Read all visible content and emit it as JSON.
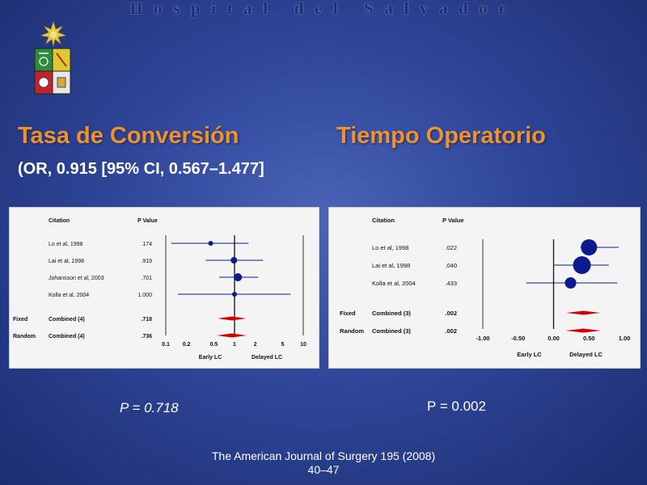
{
  "header": {
    "text": "Hospital del Salvador"
  },
  "left": {
    "title": "Tasa de Conversión",
    "subtitle": "(OR, 0.915 [95% CI, 0.567–1.477]",
    "p_label": "P  = 0.718"
  },
  "right": {
    "title": "Tiempo Operatorio",
    "p_label": "P  = 0.002"
  },
  "footer": {
    "line1": "The American Journal of Surgery 195 (2008)",
    "line2": "40–47"
  },
  "colors": {
    "point": "#0b1a8c",
    "diamond": "#d40000",
    "title": "#f0922a"
  },
  "chart_data": [
    {
      "type": "forest",
      "scale": "log",
      "column_headers": [
        "Citation",
        "P Value"
      ],
      "rows": [
        {
          "label": "Lo et al, 1998",
          "p": ".174",
          "est": 0.45,
          "lo": 0.12,
          "hi": 1.6,
          "kind": "study",
          "size": 3
        },
        {
          "label": "Lai et al, 1998",
          "p": ".919",
          "est": 0.98,
          "lo": 0.38,
          "hi": 2.6,
          "kind": "study",
          "size": 4
        },
        {
          "label": "Johansson et al, 2003",
          "p": ".701",
          "est": 1.12,
          "lo": 0.6,
          "hi": 2.2,
          "kind": "study",
          "size": 5
        },
        {
          "label": "Kolla et al, 2004",
          "p": "1.000",
          "est": 1.0,
          "lo": 0.15,
          "hi": 6.5,
          "kind": "study",
          "size": 3
        },
        {
          "group": "Fixed",
          "label": "Combined (4)",
          "p": ".718",
          "est": 0.915,
          "lo": 0.567,
          "hi": 1.477,
          "kind": "combined"
        },
        {
          "group": "Random",
          "label": "Combined (4)",
          "p": ".736",
          "est": 0.915,
          "lo": 0.55,
          "hi": 1.5,
          "kind": "combined"
        }
      ],
      "xticks": [
        "0.1",
        "0.2",
        "0.5",
        "1",
        "2",
        "5",
        "10"
      ],
      "xlim": [
        0.1,
        10
      ],
      "ref": 1,
      "xlabel_left": "Early LC",
      "xlabel_right": "Delayed LC"
    },
    {
      "type": "forest",
      "scale": "linear",
      "column_headers": [
        "Citation",
        "P Value"
      ],
      "rows": [
        {
          "label": "Lo et al, 1998",
          "p": ".022",
          "est": 0.5,
          "lo": 0.38,
          "hi": 0.92,
          "kind": "study",
          "size": 10
        },
        {
          "label": "Lai et al, 1998",
          "p": ".040",
          "est": 0.4,
          "lo": 0.0,
          "hi": 0.78,
          "kind": "study",
          "size": 11
        },
        {
          "label": "Kolla et al, 2004",
          "p": ".433",
          "est": 0.24,
          "lo": -0.39,
          "hi": 0.9,
          "kind": "study",
          "size": 7
        },
        {
          "group": "Fixed",
          "label": "Combined (3)",
          "p": ".002",
          "est": 0.42,
          "lo": 0.18,
          "hi": 0.66,
          "kind": "combined"
        },
        {
          "group": "Random",
          "label": "Combined (3)",
          "p": ".002",
          "est": 0.42,
          "lo": 0.17,
          "hi": 0.67,
          "kind": "combined"
        }
      ],
      "xticks": [
        "-1.00",
        "-0.50",
        "0.00",
        "0.50",
        "1.00"
      ],
      "xlim": [
        -1,
        1
      ],
      "ref": 0,
      "xlabel_left": "Early LC",
      "xlabel_right": "Delayed LC"
    }
  ]
}
